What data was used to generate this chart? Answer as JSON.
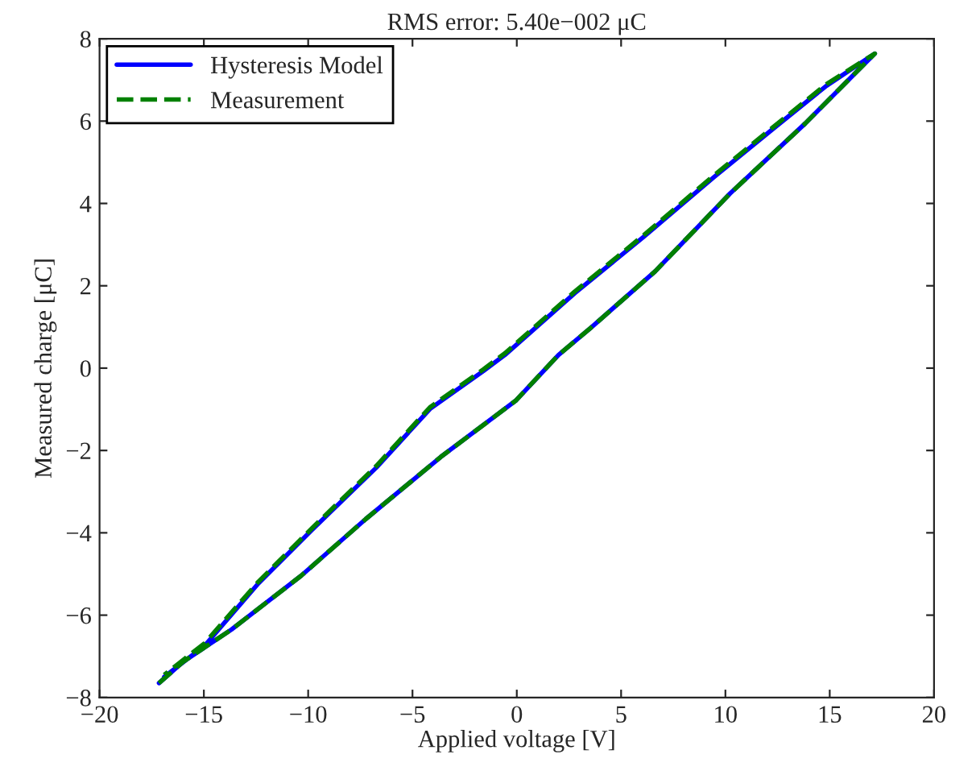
{
  "chart_data": {
    "type": "line",
    "title": "RMS error: 5.40e−002 μC",
    "xlabel": "Applied voltage [V]",
    "ylabel": "Measured charge [μC]",
    "xlim": [
      -20,
      20
    ],
    "xticks": [
      -20,
      -15,
      -10,
      -5,
      0,
      5,
      10,
      15,
      20
    ],
    "ylim": [
      -8,
      8
    ],
    "yticks": [
      -8,
      -6,
      -4,
      -2,
      0,
      2,
      4,
      6,
      8
    ],
    "grid": false,
    "legend": "top left",
    "series": [
      {
        "name": "Hysteresis Model",
        "color": "#0000ff",
        "line_style": "solid",
        "x": [
          -17.15,
          -15.99,
          -13.68,
          -10.33,
          -7.25,
          -3.65,
          -0.05,
          2.0,
          3.55,
          6.63,
          10.22,
          13.82,
          15.88,
          17.16,
          14.85,
          12.28,
          9.45,
          6.11,
          2.78,
          -0.57,
          -1.6,
          -4.16,
          -6.74,
          -9.82,
          -12.39,
          -14.96,
          -16.9
        ],
        "values": [
          -7.65,
          -7.13,
          -6.35,
          -5.04,
          -3.67,
          -2.16,
          -0.79,
          0.32,
          0.98,
          2.35,
          4.24,
          5.94,
          6.99,
          7.64,
          6.86,
          5.81,
          4.64,
          3.2,
          1.82,
          0.32,
          -0.07,
          -0.99,
          -2.42,
          -3.93,
          -5.23,
          -6.74,
          -7.5
        ]
      },
      {
        "name": "Measurement",
        "color": "#008000",
        "line_style": "dashed",
        "x": [
          -17.15,
          -15.99,
          -13.68,
          -10.33,
          -7.25,
          -3.65,
          -0.05,
          2.0,
          3.55,
          6.63,
          10.22,
          13.82,
          15.88,
          17.16,
          14.85,
          12.28,
          9.45,
          6.11,
          2.78,
          -0.57,
          -1.6,
          -4.16,
          -6.74,
          -9.82,
          -12.39,
          -14.96,
          -16.9
        ],
        "values": [
          -7.65,
          -7.13,
          -6.35,
          -5.04,
          -3.67,
          -2.16,
          -0.79,
          0.32,
          0.98,
          2.35,
          4.24,
          5.94,
          6.99,
          7.64,
          6.9,
          5.85,
          4.68,
          3.24,
          1.86,
          0.36,
          -0.03,
          -0.95,
          -2.38,
          -3.89,
          -5.19,
          -6.68,
          -7.45
        ]
      }
    ]
  }
}
